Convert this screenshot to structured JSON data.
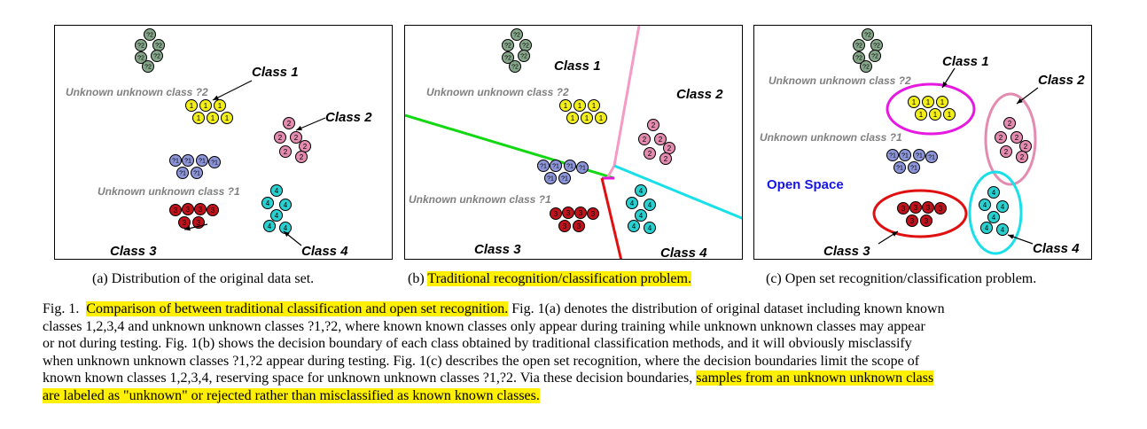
{
  "panels": [
    {
      "id": "a",
      "labels": {
        "class1": "Class 1",
        "class2": "Class 2",
        "class3": "Class 3",
        "class4": "Class 4",
        "unk1": "Unknown unknown class ?1",
        "unk2": "Unknown unknown class ?2"
      },
      "subcaption": "(a) Distribution of the original data set."
    },
    {
      "id": "b",
      "labels": {
        "class1": "Class 1",
        "class2": "Class 2",
        "class3": "Class 3",
        "class4": "Class 4",
        "unk1": "Unknown unknown class ?1",
        "unk2": "Unknown unknown class ?2"
      },
      "subcaption_prefix": "(b) ",
      "subcaption_highlight": "Traditional recognition/classification problem."
    },
    {
      "id": "c",
      "labels": {
        "class1": "Class 1",
        "class2": "Class 2",
        "class3": "Class 3",
        "class4": "Class 4",
        "unk1": "Unknown unknown class ?1",
        "unk2": "Unknown unknown class ?2",
        "open_space": "Open Space"
      },
      "subcaption": "(c) Open set recognition/classification problem."
    }
  ],
  "markers": {
    "class1": "1",
    "class2": "2",
    "class3": "3",
    "class4": "4",
    "unk1": "?1",
    "unk2": "?2"
  },
  "colors": {
    "class1": "#f2ee1a",
    "class2": "#e48bb0",
    "class3": "#c0121b",
    "class4": "#2ad0d0",
    "unk1": "#8d95d9",
    "unk2": "#86a68a",
    "open_space": "#1515e6",
    "unknown_text": "#808080",
    "highlight": "#ffef00",
    "boundary_green": "#11d811",
    "boundary_pink": "#f49ac4",
    "boundary_cyan": "#19e0e8",
    "boundary_red": "#e01010",
    "circle_magenta": "#e619e0"
  },
  "caption": {
    "fig_label": "Fig. 1.",
    "highlight_1": "Comparison of between traditional classification and open set recognition.",
    "line1_rest": "Fig. 1(a) denotes the distribution of original dataset including known known",
    "line2": "classes 1,2,3,4 and unknown unknown classes ?1,?2, where known known classes only appear during training while unknown unknown classes may appear",
    "line3": "or not during testing. Fig. 1(b) shows the decision boundary of each class obtained by traditional classification methods, and it will obviously misclassify",
    "line4": "when unknown unknown classes ?1,?2 appear during testing. Fig. 1(c) describes the open set recognition, where the decision boundaries limit the scope of",
    "line5_start": "known known classes 1,2,3,4, reserving space for unknown unknown classes ?1,?2. Via these decision boundaries,",
    "highlight_2a": "samples from an unknown unknown class",
    "highlight_2b": "are labeled as \"unknown\" or rejected rather than misclassified as known known classes."
  }
}
